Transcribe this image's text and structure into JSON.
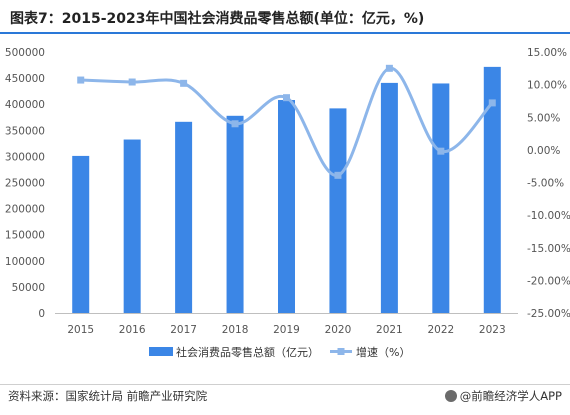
{
  "title": "图表7：2015-2023年中国社会消费品零售总额(单位：亿元，%)",
  "source": "资料来源：国家统计局 前瞻产业研究院",
  "brand": "@前瞻经济学人APP",
  "chart_data": {
    "type": "bar",
    "categories": [
      "2015",
      "2016",
      "2017",
      "2018",
      "2019",
      "2020",
      "2021",
      "2022",
      "2023"
    ],
    "series": [
      {
        "name": "社会消费品零售总额（亿元）",
        "type": "bar",
        "axis": "left",
        "color": "#3b86e6",
        "values": [
          300931,
          332316,
          366262,
          377783,
          408017,
          391981,
          440823,
          439733,
          471495
        ]
      },
      {
        "name": "增速（%）",
        "type": "line",
        "axis": "right",
        "color": "#8db6ea",
        "values": [
          10.7,
          10.4,
          10.2,
          4.0,
          8.0,
          -3.9,
          12.5,
          -0.2,
          7.2
        ]
      }
    ],
    "left_axis": {
      "ylim": [
        0,
        500000
      ],
      "ticks": [
        "0",
        "50000",
        "100000",
        "150000",
        "200000",
        "250000",
        "300000",
        "350000",
        "400000",
        "450000",
        "500000"
      ]
    },
    "right_axis": {
      "ylim": [
        -25,
        15
      ],
      "ticks": [
        "-25.00%",
        "-20.00%",
        "-15.00%",
        "-10.00%",
        "-5.00%",
        "0.00%",
        "5.00%",
        "10.00%",
        "15.00%"
      ]
    },
    "grid": false,
    "legend_position": "bottom"
  }
}
